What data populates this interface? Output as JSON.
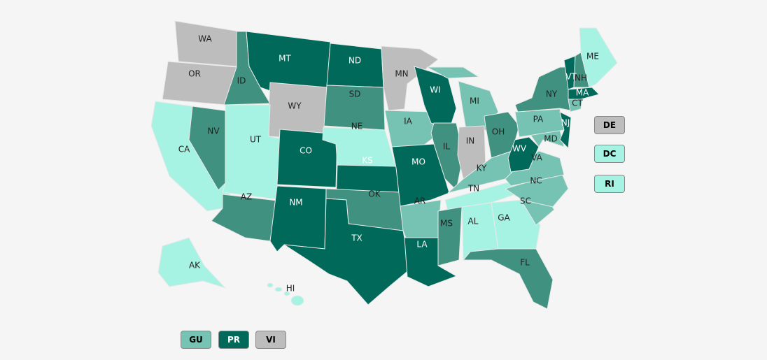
{
  "colors": {
    "dark": "#00695a",
    "medium": "#40917f",
    "light": "#76c3b3",
    "lightest": "#a6f3e3",
    "gray": "#bdbdbd"
  },
  "states": [
    {
      "abbr": "WA",
      "cat": "gray"
    },
    {
      "abbr": "OR",
      "cat": "gray"
    },
    {
      "abbr": "CA",
      "cat": "lightest"
    },
    {
      "abbr": "NV",
      "cat": "medium"
    },
    {
      "abbr": "ID",
      "cat": "medium"
    },
    {
      "abbr": "MT",
      "cat": "dark"
    },
    {
      "abbr": "WY",
      "cat": "gray"
    },
    {
      "abbr": "UT",
      "cat": "lightest"
    },
    {
      "abbr": "AZ",
      "cat": "medium"
    },
    {
      "abbr": "CO",
      "cat": "dark"
    },
    {
      "abbr": "NM",
      "cat": "dark"
    },
    {
      "abbr": "ND",
      "cat": "dark"
    },
    {
      "abbr": "SD",
      "cat": "medium"
    },
    {
      "abbr": "NE",
      "cat": "lightest"
    },
    {
      "abbr": "KS",
      "cat": "dark"
    },
    {
      "abbr": "OK",
      "cat": "medium"
    },
    {
      "abbr": "TX",
      "cat": "dark"
    },
    {
      "abbr": "MN",
      "cat": "gray"
    },
    {
      "abbr": "IA",
      "cat": "light"
    },
    {
      "abbr": "MO",
      "cat": "dark"
    },
    {
      "abbr": "AR",
      "cat": "light"
    },
    {
      "abbr": "LA",
      "cat": "dark"
    },
    {
      "abbr": "WI",
      "cat": "dark"
    },
    {
      "abbr": "IL",
      "cat": "medium"
    },
    {
      "abbr": "MI",
      "cat": "light"
    },
    {
      "abbr": "IN",
      "cat": "gray"
    },
    {
      "abbr": "OH",
      "cat": "medium"
    },
    {
      "abbr": "KY",
      "cat": "light"
    },
    {
      "abbr": "TN",
      "cat": "lightest"
    },
    {
      "abbr": "MS",
      "cat": "medium"
    },
    {
      "abbr": "AL",
      "cat": "lightest"
    },
    {
      "abbr": "GA",
      "cat": "lightest"
    },
    {
      "abbr": "FL",
      "cat": "medium"
    },
    {
      "abbr": "SC",
      "cat": "light"
    },
    {
      "abbr": "NC",
      "cat": "light"
    },
    {
      "abbr": "VA",
      "cat": "light"
    },
    {
      "abbr": "WV",
      "cat": "dark"
    },
    {
      "abbr": "MD",
      "cat": "light"
    },
    {
      "abbr": "PA",
      "cat": "light"
    },
    {
      "abbr": "NJ",
      "cat": "dark"
    },
    {
      "abbr": "NY",
      "cat": "medium"
    },
    {
      "abbr": "VT",
      "cat": "dark"
    },
    {
      "abbr": "NH",
      "cat": "medium"
    },
    {
      "abbr": "ME",
      "cat": "lightest"
    },
    {
      "abbr": "MA",
      "cat": "dark"
    },
    {
      "abbr": "CT",
      "cat": "light"
    },
    {
      "abbr": "AK",
      "cat": "lightest"
    },
    {
      "abbr": "HI",
      "cat": "lightest"
    }
  ],
  "side_boxes": [
    {
      "abbr": "DE",
      "cat": "gray"
    },
    {
      "abbr": "DC",
      "cat": "lightest"
    },
    {
      "abbr": "RI",
      "cat": "lightest"
    }
  ],
  "territories": [
    {
      "abbr": "GU",
      "cat": "light"
    },
    {
      "abbr": "PR",
      "cat": "dark"
    },
    {
      "abbr": "VI",
      "cat": "gray"
    }
  ]
}
